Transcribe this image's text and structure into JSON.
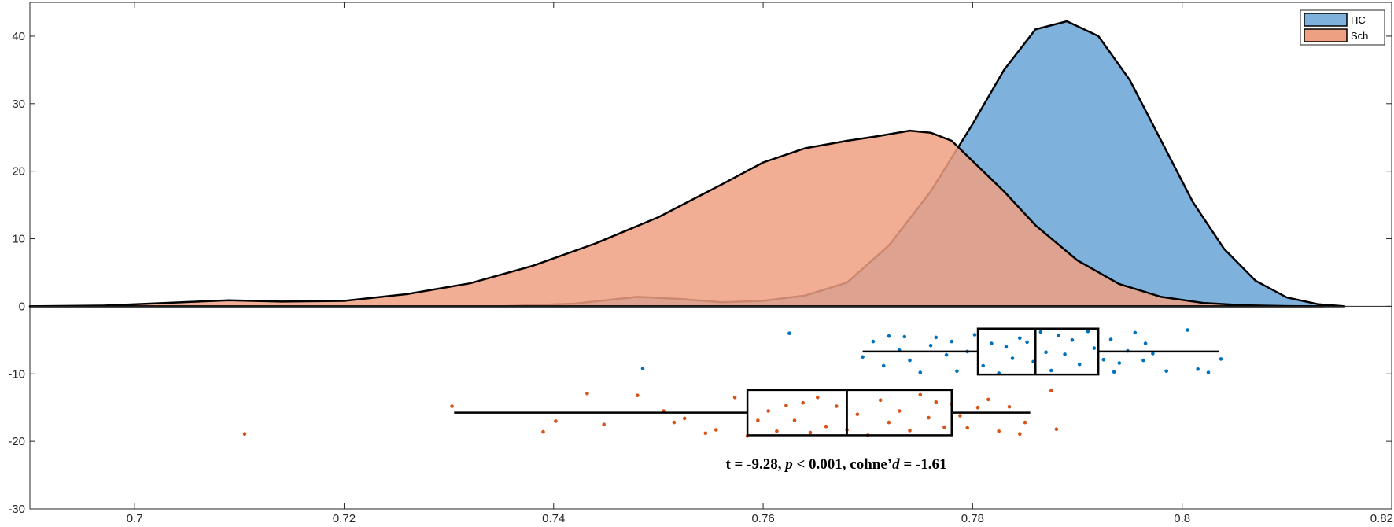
{
  "chart_data": {
    "type": "raincloud",
    "title": "",
    "xlabel": "",
    "ylabel": "",
    "xlim": [
      0.69,
      0.82
    ],
    "ylim": [
      -30,
      45
    ],
    "x_ticks": [
      0.7,
      0.72,
      0.74,
      0.76,
      0.78,
      0.8,
      0.82
    ],
    "x_tick_labels": [
      "0.7",
      "0.72",
      "0.74",
      "0.76",
      "0.78",
      "0.8",
      "0.82"
    ],
    "y_ticks": [
      40,
      30,
      20,
      10,
      0,
      -10,
      -20,
      -30
    ],
    "y_tick_labels": [
      "40",
      "30",
      "20",
      "10",
      "0",
      "-10",
      "-20",
      "-30"
    ],
    "grid": false,
    "legend_position": "top-right",
    "annotation": {
      "t_part": "t = -9.28, ",
      "p_symbol": "p",
      "p_part": " < 0.001, cohne’",
      "d_symbol": "d",
      "d_part": " = -1.61"
    },
    "series": [
      {
        "name": "HC",
        "color": "#7EB1DB",
        "point_color": "#0072BD",
        "density": {
          "x": [
            0.69,
            0.735,
            0.742,
            0.748,
            0.752,
            0.756,
            0.76,
            0.764,
            0.768,
            0.772,
            0.776,
            0.78,
            0.783,
            0.786,
            0.789,
            0.792,
            0.795,
            0.798,
            0.801,
            0.804,
            0.807,
            0.81,
            0.813,
            0.8155
          ],
          "y": [
            0,
            0,
            0.4,
            1.4,
            1.1,
            0.6,
            0.8,
            1.6,
            3.5,
            9,
            17,
            27,
            35,
            41,
            42.2,
            40,
            33.5,
            24.5,
            15.5,
            8.5,
            3.8,
            1.3,
            0.3,
            0
          ]
        },
        "box": {
          "whisker_low": 0.7695,
          "q1": 0.7805,
          "median": 0.786,
          "q3": 0.792,
          "whisker_high": 0.8035,
          "y_top": -3.3,
          "y_bottom": -10.1
        },
        "points": [
          [
            0.7625,
            -4.0
          ],
          [
            0.7485,
            -9.2
          ],
          [
            0.7695,
            -7.5
          ],
          [
            0.7705,
            -5.2
          ],
          [
            0.7715,
            -8.8
          ],
          [
            0.772,
            -4.4
          ],
          [
            0.773,
            -6.5
          ],
          [
            0.7735,
            -4.5
          ],
          [
            0.774,
            -8.0
          ],
          [
            0.775,
            -9.8
          ],
          [
            0.776,
            -5.8
          ],
          [
            0.7765,
            -4.6
          ],
          [
            0.7775,
            -7.2
          ],
          [
            0.778,
            -5.2
          ],
          [
            0.7785,
            -9.6
          ],
          [
            0.7795,
            -6.7
          ],
          [
            0.7802,
            -4.2
          ],
          [
            0.781,
            -8.8
          ],
          [
            0.7818,
            -5.5
          ],
          [
            0.7825,
            -9.9
          ],
          [
            0.7832,
            -6.0
          ],
          [
            0.7838,
            -7.7
          ],
          [
            0.7845,
            -4.7
          ],
          [
            0.7852,
            -5.3
          ],
          [
            0.7858,
            -8.2
          ],
          [
            0.7865,
            -3.8
          ],
          [
            0.787,
            -6.8
          ],
          [
            0.7875,
            -9.5
          ],
          [
            0.7882,
            -4.3
          ],
          [
            0.7888,
            -7.1
          ],
          [
            0.7895,
            -5.0
          ],
          [
            0.7902,
            -8.6
          ],
          [
            0.791,
            -3.7
          ],
          [
            0.7916,
            -6.2
          ],
          [
            0.7925,
            -7.9
          ],
          [
            0.7932,
            -4.9
          ],
          [
            0.794,
            -8.4
          ],
          [
            0.7948,
            -6.6
          ],
          [
            0.7955,
            -3.9
          ],
          [
            0.7963,
            -8.0
          ],
          [
            0.7972,
            -7.0
          ],
          [
            0.7985,
            -9.6
          ],
          [
            0.8005,
            -3.5
          ],
          [
            0.8015,
            -9.3
          ],
          [
            0.8025,
            -9.8
          ],
          [
            0.8037,
            -7.8
          ],
          [
            0.7935,
            -9.7
          ],
          [
            0.7965,
            -5.5
          ]
        ]
      },
      {
        "name": "Sch",
        "color": "#EEA082",
        "point_color": "#D95319",
        "density": {
          "x": [
            0.69,
            0.697,
            0.703,
            0.709,
            0.714,
            0.72,
            0.726,
            0.732,
            0.738,
            0.744,
            0.75,
            0.756,
            0.76,
            0.764,
            0.768,
            0.771,
            0.774,
            0.776,
            0.778,
            0.78,
            0.783,
            0.786,
            0.79,
            0.794,
            0.798,
            0.802,
            0.806,
            0.81,
            0.8135
          ],
          "y": [
            0,
            0.1,
            0.5,
            0.9,
            0.7,
            0.8,
            1.8,
            3.4,
            6,
            9.3,
            13.2,
            18,
            21.3,
            23.4,
            24.5,
            25.2,
            26,
            25.7,
            24.5,
            21.5,
            17,
            12,
            6.8,
            3.3,
            1.4,
            0.5,
            0.15,
            0.03,
            0
          ]
        },
        "box": {
          "whisker_low": 0.7305,
          "q1": 0.7585,
          "median": 0.768,
          "q3": 0.778,
          "whisker_high": 0.7855,
          "y_top": -12.4,
          "y_bottom": -19.1
        },
        "points": [
          [
            0.7105,
            -18.9
          ],
          [
            0.7303,
            -14.8
          ],
          [
            0.739,
            -18.6
          ],
          [
            0.7402,
            -17.0
          ],
          [
            0.7432,
            -12.9
          ],
          [
            0.7448,
            -17.5
          ],
          [
            0.748,
            -13.2
          ],
          [
            0.7505,
            -15.5
          ],
          [
            0.7515,
            -17.2
          ],
          [
            0.7525,
            -16.6
          ],
          [
            0.7545,
            -18.8
          ],
          [
            0.7555,
            -18.3
          ],
          [
            0.7573,
            -13.5
          ],
          [
            0.7585,
            -19.2
          ],
          [
            0.7595,
            -16.9
          ],
          [
            0.7605,
            -15.5
          ],
          [
            0.7613,
            -18.5
          ],
          [
            0.7622,
            -14.7
          ],
          [
            0.763,
            -16.9
          ],
          [
            0.7638,
            -14.3
          ],
          [
            0.7645,
            -18.7
          ],
          [
            0.7652,
            -13.5
          ],
          [
            0.766,
            -17.8
          ],
          [
            0.767,
            -14.8
          ],
          [
            0.768,
            -18.3
          ],
          [
            0.769,
            -16.0
          ],
          [
            0.77,
            -19.1
          ],
          [
            0.7712,
            -13.9
          ],
          [
            0.772,
            -17.2
          ],
          [
            0.773,
            -15.5
          ],
          [
            0.774,
            -18.4
          ],
          [
            0.775,
            -13.1
          ],
          [
            0.7758,
            -16.5
          ],
          [
            0.7765,
            -14.2
          ],
          [
            0.7773,
            -17.9
          ],
          [
            0.778,
            -14.5
          ],
          [
            0.7788,
            -16.2
          ],
          [
            0.7795,
            -18.0
          ],
          [
            0.7805,
            -15.0
          ],
          [
            0.7815,
            -13.8
          ],
          [
            0.7825,
            -18.5
          ],
          [
            0.7835,
            -14.9
          ],
          [
            0.7845,
            -18.9
          ],
          [
            0.785,
            -17.2
          ],
          [
            0.7875,
            -12.5
          ],
          [
            0.788,
            -18.2
          ]
        ]
      }
    ]
  }
}
